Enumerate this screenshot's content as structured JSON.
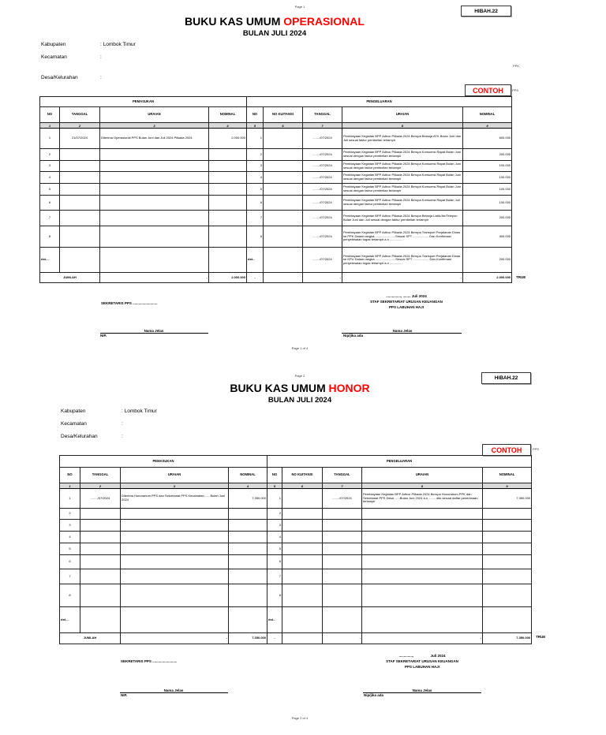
{
  "pages": [
    {
      "page_label": "Page 1",
      "form_code": "HIBAH.22",
      "title_black": "BUKU KAS UMUM ",
      "title_red": "OPERASIONAL",
      "subtitle": "BULAN JULI 2024",
      "meta": [
        {
          "label": "Kabupaten",
          "value": ": Lombok Timur"
        },
        {
          "label": "Kecamatan",
          "value": ":"
        },
        {
          "label": "Desa/Kelurahan",
          "value": ":"
        }
      ],
      "side_note_ppk": "PPK",
      "contoh": "CONTOH",
      "side_note_pps": "PPS",
      "table": {
        "section_in": "PEMASUKAN",
        "section_out": "PENGELUARAN",
        "headers": [
          "NO",
          "TANGGAL",
          "URAIAN",
          "NOMINAL",
          "NO",
          "NO KUITANSI",
          "TANGGAL",
          "URAIAN",
          "NOMINAL"
        ],
        "col_numbers": [
          "1",
          "2",
          "3",
          "4",
          "5",
          "6",
          "7",
          "8",
          "9"
        ],
        "rows": [
          [
            "1",
            "21/07/2024",
            "Diterima Operasional PPS Bulan Juni dan Juli 2024 Pilkada 2024",
            "2.000.000",
            "1",
            "",
            "......../07/2024",
            "Pembiayaan Kegiatan BPP Adhoc Pilkada 2024 Berupa Belanja ATK Bulan Juni dan Juli sesuai faktur pembelian terlampir",
            "600.000"
          ],
          [
            "2",
            "",
            "",
            "",
            "2",
            "",
            "......../07/2024",
            "Pembiayaan Kegiatan BPP Adhoc Pilkada 2024 Berupa Konsumsi Rapat Bulan Juni sesuai dengan faktur pembelian terlampir",
            "200.000"
          ],
          [
            "3",
            "",
            "",
            "",
            "3",
            "",
            "......../07/2024",
            "Pembiayaan Kegiatan BPP Adhoc Pilkada 2024 Berupa Konsumsi Rapat Bulan Juni sesuai dengan faktur pembelian terlampir",
            "100.000"
          ],
          [
            "4",
            "",
            "",
            "",
            "4",
            "",
            "......../07/2024",
            "Pembiayaan Kegiatan BPP Adhoc Pilkada 2024 Berupa Konsumsi Rapat Bulan Juni sesuai dengan faktur pembelian terlampir",
            "100.000"
          ],
          [
            "5",
            "",
            "",
            "",
            "5",
            "",
            "......../07/2024",
            "Pembiayaan Kegiatan BPP Adhoc Pilkada 2024 Berupa Konsumsi Rapat Bulan Juni sesuai dengan faktur pembelian terlampir",
            "100.000"
          ],
          [
            "6",
            "",
            "",
            "",
            "6",
            "",
            "......../07/2024",
            "Pembiayaan Kegiatan BPP Adhoc Pilkada 2024 Berupa Konsumsi Rapat Bulan Juli sesuai dengan faktur pembelian terlampir",
            "100.000"
          ],
          [
            "7",
            "",
            "",
            "",
            "7",
            "",
            "......../07/2024",
            "Pembiayaan Kegiatan BPP Adhoc Pilkada 2024 Berupa Belanja Listik/Air/Telepon Bulan Juni dan Juli sesuai dengan faktur pembelian terlampir",
            "200.000"
          ],
          [
            "8",
            "",
            "",
            "",
            "8",
            "",
            "......../07/2024",
            "Pembiayaan Kegiatan BPP Adhoc Pilkada 2024 Berupa Transport Perjalanan Dinas ke PPK Dalam rangka........................Sesuai SPT .................. Dan Konfirmasi penyelesaian tugas terlampir a.n ...............",
            "400.000"
          ],
          [
            "dst....",
            "",
            "",
            "",
            "dst...",
            "",
            "......../07/2024",
            "Pembiayaan Kegiatan BPP Adhoc Pilkada 2024 Berupa Transport Perjalanan Dinas ke KPU Dalam rangka .......................Sesuai SPT .................. Dan Konfirmasi penyelesaian tugas terlampir a.n ...............",
            "200.000"
          ]
        ],
        "total": {
          "label": "JUMLAH",
          "in_uraian": "-",
          "in_nominal": "2.000.000",
          "out_no": "-",
          "out_kuitansi": "",
          "out_tanggal": "-",
          "out_uraian": "-",
          "out_nominal": "2.000.000"
        },
        "check": "TRUE"
      },
      "signatures": {
        "left_title": "SEKRETARIS PPS .........................",
        "left_name": "Nama Jelas",
        "left_id": "NIP.",
        "right_date": "..............., ........ Juli  2024",
        "right_title": "STAF SEKRETARIAT  URUSAN  KEUANGAN",
        "right_org": "PPS LABUHAN HAJI",
        "right_name": "Nama Jelas",
        "right_id": "Nip/jika ada"
      },
      "footer": "Page 1 of 4"
    },
    {
      "page_label": "Page 2",
      "form_code": "HIBAH.22",
      "title_black": "BUKU KAS UMUM ",
      "title_red": "HONOR",
      "subtitle": "BULAN JULI 2024",
      "meta": [
        {
          "label": "Kabupaten",
          "value": ": Lombok Timur"
        },
        {
          "label": "Kecamatan",
          "value": ":"
        },
        {
          "label": "Desa/Kelurahan",
          "value": ":"
        }
      ],
      "contoh": "CONTOH",
      "side_note_pps": "PPS",
      "table": {
        "section_in": "PEMASUKAN",
        "section_out": "PENGELUARAN",
        "headers": [
          "NO",
          "TANGGAL",
          "URAIAN",
          "NOMINAL",
          "NO",
          "NO KUITANSI",
          "TANGGAL",
          "URAIAN",
          "NOMINAL"
        ],
        "col_numbers": [
          "1",
          "2",
          "3",
          "4",
          "5",
          "6",
          "7",
          "8",
          "9"
        ],
        "rows": [
          [
            "1",
            "......../07/2024",
            "Diterima Honorarium PPS dan Sekretariat PPS Kecamatan ......Bulan Juni 2024",
            "7.350.000",
            "1",
            "",
            "......../07/2024",
            "Pembiayaan Kegiatan BPP Adhoc Pilkada 2024 Berupa Honorarium PPK dan Sekretariat PPS Desa ......Bulan Juni 2024 a.n ........ dkk sesuai daftar penerimaan terlampir",
            "7.350.000"
          ],
          [
            "2",
            "",
            "",
            "",
            "2",
            "",
            "",
            "",
            ""
          ],
          [
            "3",
            "",
            "",
            "",
            "3",
            "",
            "",
            "",
            ""
          ],
          [
            "4",
            "",
            "",
            "",
            "4",
            "",
            "",
            "",
            ""
          ],
          [
            "5",
            "",
            "",
            "",
            "5",
            "",
            "",
            "",
            ""
          ],
          [
            "6",
            "",
            "",
            "",
            "6",
            "",
            "",
            "",
            ""
          ],
          [
            "7",
            "",
            "",
            "",
            "7",
            "",
            "",
            "",
            ""
          ],
          [
            "8",
            "",
            "",
            "",
            "8",
            "",
            "",
            "",
            ""
          ],
          [
            "dst....",
            "",
            "",
            "",
            "dst...",
            "",
            "",
            "",
            ""
          ]
        ],
        "total": {
          "label": "JUMLAH",
          "in_uraian": "-",
          "in_nominal": "7.350.000",
          "out_no": "-",
          "out_kuitansi": "",
          "out_tanggal": "-",
          "out_uraian": "-",
          "out_nominal": "7.350.000"
        },
        "check": "TRUE"
      },
      "signatures": {
        "left_title": "SEKRETARIS PPS .........................",
        "left_name": "Nama Jelas",
        "left_id": "NIP.",
        "right_date": "..............,                 Juli 2024",
        "right_title": "STAF SEKRETARIAT URUSAN KEUANGAN",
        "right_org": "PPS LABUHAN HAJI",
        "right_name": "Nama Jelas",
        "right_id": "Nip/jika ada"
      },
      "footer": "Page 2 of 4"
    }
  ]
}
